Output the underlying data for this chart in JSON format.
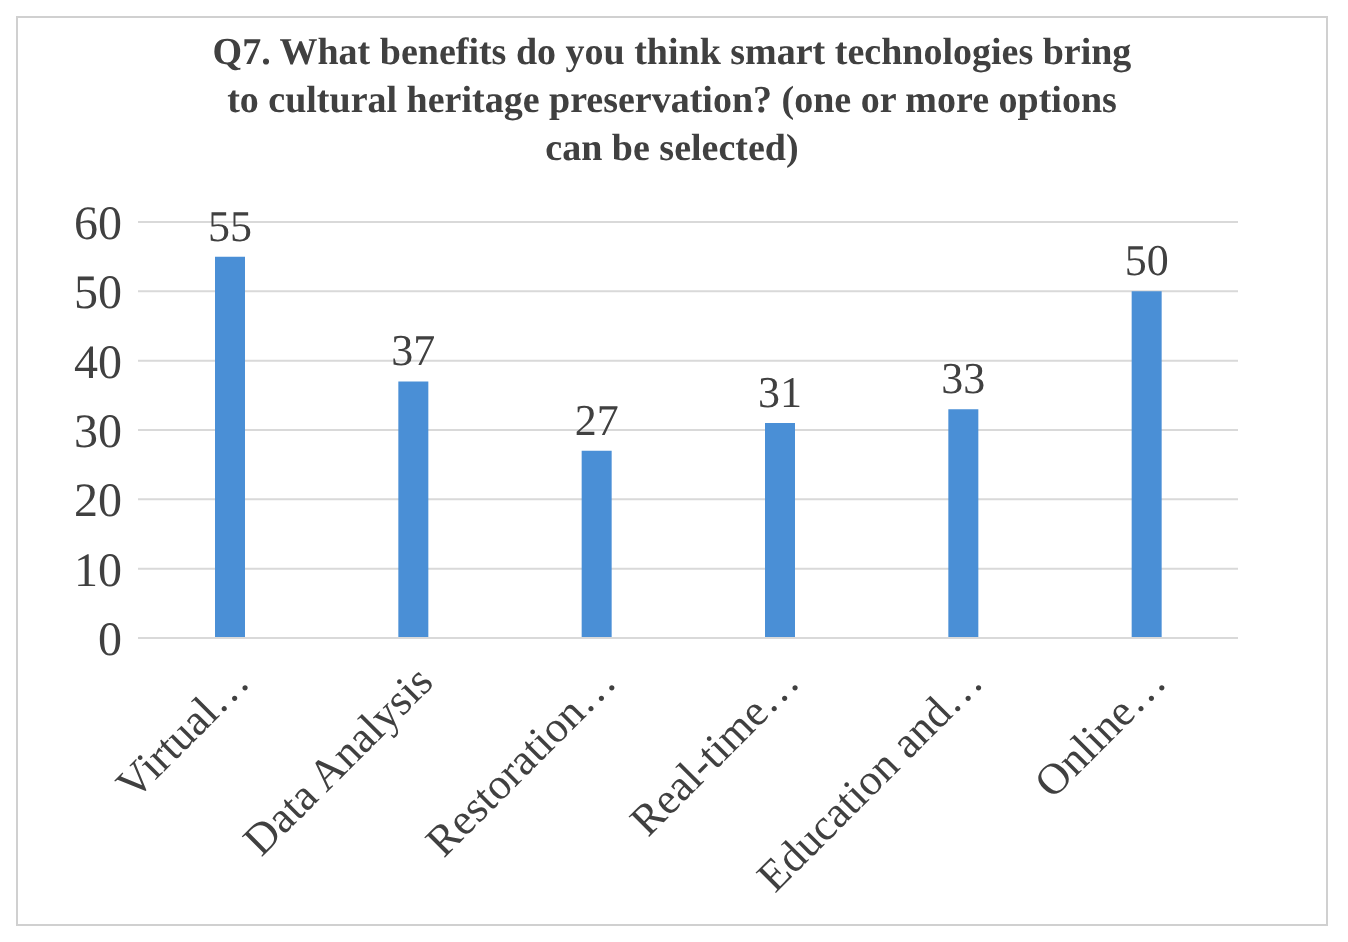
{
  "chart_data": {
    "type": "bar",
    "title": "Q7. What benefits do you think smart technologies bring to cultural heritage preservation? (one or more options can be selected)",
    "categories": [
      "Virtual…",
      "Data Analysis",
      "Restoration…",
      "Real-time…",
      "Education and…",
      "Online…"
    ],
    "values": [
      55,
      37,
      27,
      31,
      33,
      50
    ],
    "color": "#4a8fd6",
    "ylim": [
      0,
      60
    ],
    "yticks": [
      0,
      10,
      20,
      30,
      40,
      50,
      60
    ],
    "grid": "y",
    "data_labels": true
  }
}
